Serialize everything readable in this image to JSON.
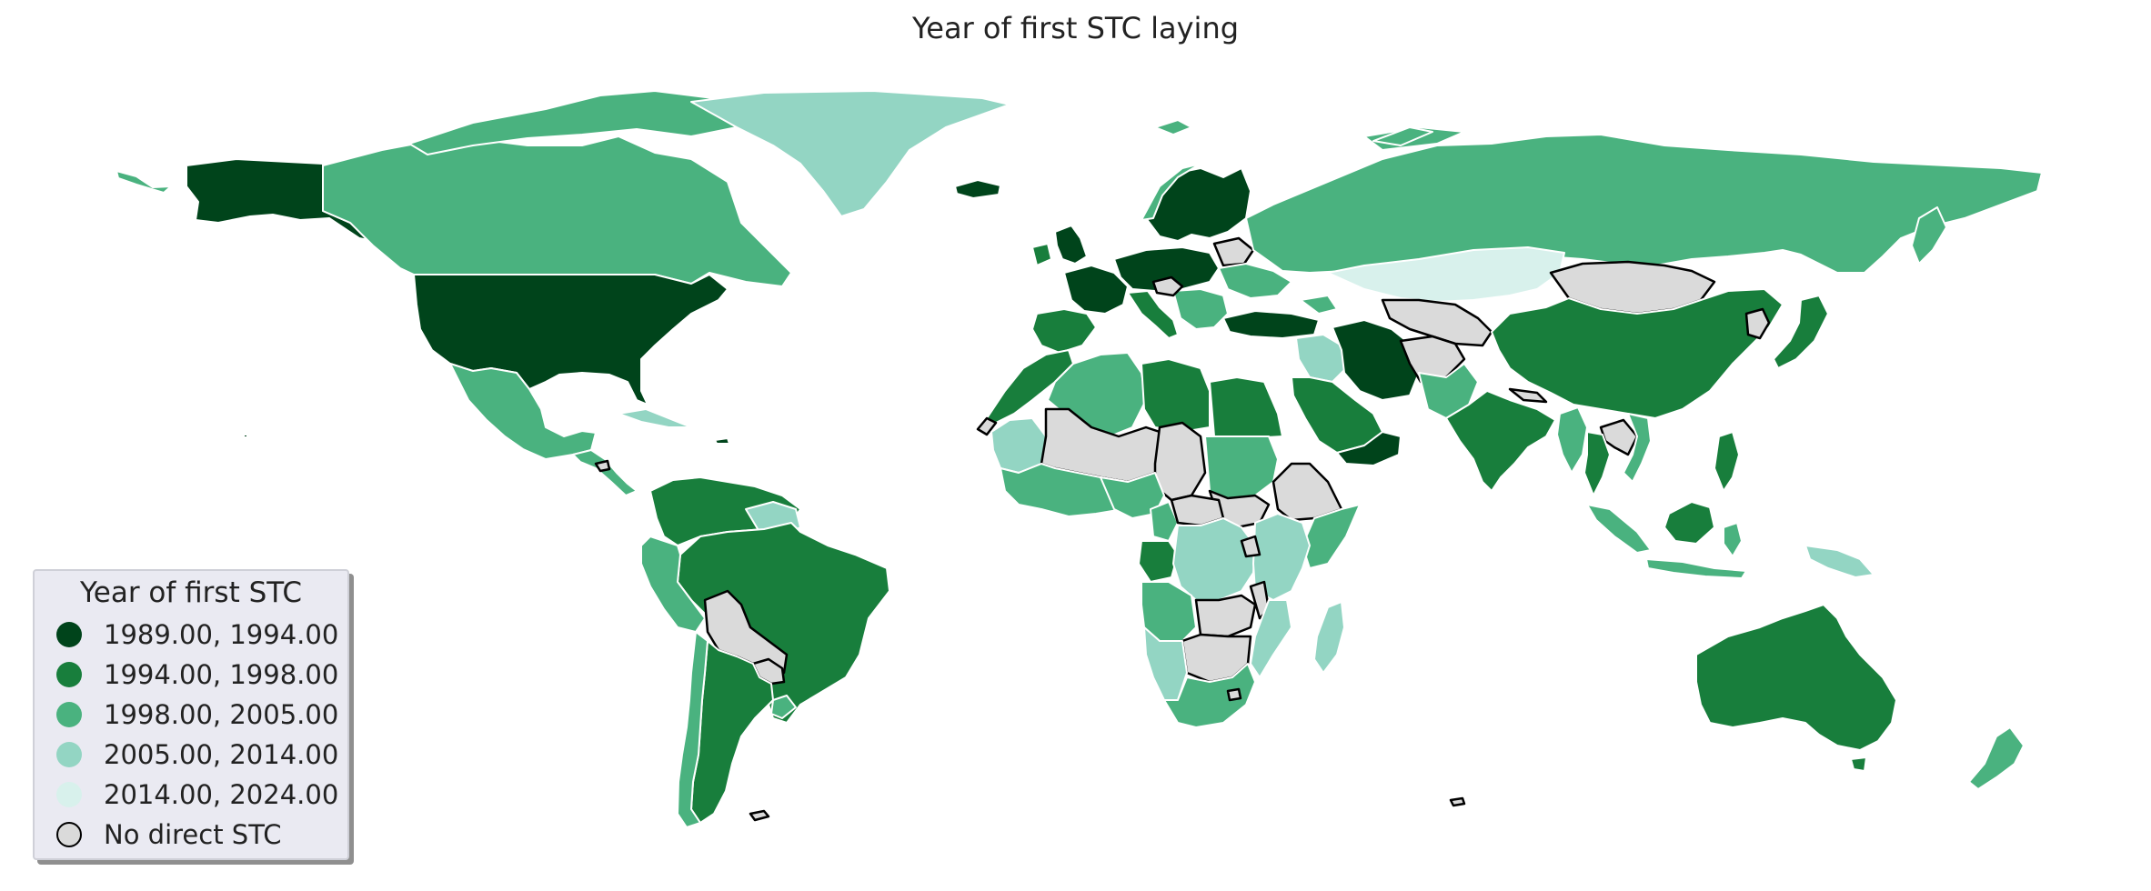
{
  "title": "Year of first STC laying",
  "legend": {
    "title": "Year of first STC",
    "items": [
      {
        "label": "1989.00, 1994.00",
        "color": "#00441b",
        "class": "c1"
      },
      {
        "label": "1994.00, 1998.00",
        "color": "#187e3c",
        "class": "c2"
      },
      {
        "label": "1998.00, 2005.00",
        "color": "#4ab27f",
        "class": "c3"
      },
      {
        "label": "2005.00, 2014.00",
        "color": "#93d5c3",
        "class": "c4"
      },
      {
        "label": "2014.00, 2024.00",
        "color": "#d8f1ec",
        "class": "c5"
      },
      {
        "label": "No direct STC",
        "color": "#dadada",
        "class": "none"
      }
    ]
  },
  "colors": {
    "c1": "#00441b",
    "c2": "#187e3c",
    "c3": "#4ab27f",
    "c4": "#93d5c3",
    "c5": "#d8f1ec",
    "none": "#dadada"
  }
}
